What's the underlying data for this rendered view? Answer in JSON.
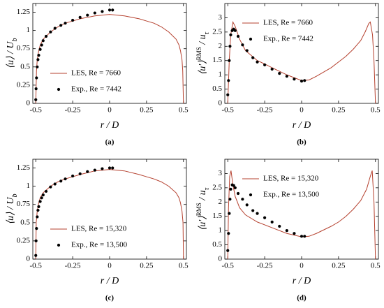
{
  "chart_data": [
    {
      "type": "line",
      "caption": "(a)",
      "xlabel": "r / D",
      "ylabel": [
        {
          "text": "⟨u⟩ / U"
        },
        {
          "sub": "b"
        }
      ],
      "xlim": [
        -0.52,
        0.52
      ],
      "ylim": [
        0,
        1.37
      ],
      "xticks": [
        -0.5,
        -0.25,
        0,
        0.25,
        0.5
      ],
      "yticks": [
        0,
        0.25,
        0.5,
        0.75,
        1,
        1.25
      ],
      "legend": "lower right",
      "series": [
        {
          "name": "LES, Re = 7660",
          "kind": "line",
          "color": "#b5412f",
          "x": [
            -0.5,
            -0.495,
            -0.49,
            -0.48,
            -0.47,
            -0.45,
            -0.4,
            -0.35,
            -0.3,
            -0.25,
            -0.2,
            -0.1,
            0,
            0.1,
            0.2,
            0.25,
            0.3,
            0.35,
            0.4,
            0.45,
            0.47,
            0.48,
            0.49,
            0.495,
            0.5
          ],
          "values": [
            0,
            0.45,
            0.6,
            0.72,
            0.8,
            0.88,
            0.98,
            1.05,
            1.1,
            1.13,
            1.16,
            1.2,
            1.22,
            1.2,
            1.16,
            1.13,
            1.1,
            1.05,
            0.98,
            0.88,
            0.8,
            0.72,
            0.6,
            0.45,
            0
          ]
        },
        {
          "name": "Exp., Re = 7442",
          "kind": "scatter",
          "color": "#000000",
          "x": [
            -0.5,
            -0.498,
            -0.495,
            -0.49,
            -0.485,
            -0.48,
            -0.47,
            -0.46,
            -0.45,
            -0.43,
            -0.4,
            -0.37,
            -0.33,
            -0.3,
            -0.25,
            -0.2,
            -0.15,
            -0.1,
            -0.05,
            0,
            0.02
          ],
          "values": [
            0.05,
            0.2,
            0.35,
            0.5,
            0.6,
            0.66,
            0.74,
            0.8,
            0.86,
            0.92,
            0.98,
            1.03,
            1.07,
            1.1,
            1.14,
            1.18,
            1.21,
            1.24,
            1.26,
            1.28,
            1.28
          ]
        }
      ]
    },
    {
      "type": "line",
      "caption": "(b)",
      "xlabel": "r / D",
      "ylabel": [
        {
          "text": "⟨u′⟩"
        },
        {
          "sup": "RMS"
        },
        {
          "text": " / u"
        },
        {
          "sub": "τ"
        }
      ],
      "xlim": [
        -0.52,
        0.52
      ],
      "ylim": [
        0,
        3.5
      ],
      "xticks": [
        -0.5,
        -0.25,
        0,
        0.25,
        0.5
      ],
      "yticks": [
        0,
        0.5,
        1,
        1.5,
        2,
        2.5,
        3
      ],
      "legend": "upper right",
      "series": [
        {
          "name": "LES, Re = 7660",
          "kind": "line",
          "color": "#b5412f",
          "x": [
            -0.5,
            -0.49,
            -0.48,
            -0.465,
            -0.45,
            -0.42,
            -0.38,
            -0.3,
            -0.25,
            -0.2,
            -0.1,
            0,
            0.05,
            0.1,
            0.2,
            0.25,
            0.3,
            0.35,
            0.4,
            0.43,
            0.455,
            0.465,
            0.48,
            0.49,
            0.5
          ],
          "values": [
            0,
            1.5,
            2.4,
            2.85,
            2.7,
            2.25,
            1.85,
            1.5,
            1.38,
            1.25,
            1.0,
            0.8,
            0.82,
            0.95,
            1.25,
            1.45,
            1.65,
            1.9,
            2.2,
            2.5,
            2.8,
            2.85,
            2.4,
            1.5,
            0
          ]
        },
        {
          "name": "Exp., Re = 7442",
          "kind": "scatter",
          "color": "#000000",
          "x": [
            -0.5,
            -0.495,
            -0.49,
            -0.485,
            -0.48,
            -0.47,
            -0.46,
            -0.45,
            -0.43,
            -0.4,
            -0.37,
            -0.33,
            -0.3,
            -0.25,
            -0.2,
            -0.15,
            -0.1,
            -0.05,
            0,
            0.02
          ],
          "values": [
            0.3,
            0.8,
            1.5,
            2.0,
            2.4,
            2.55,
            2.6,
            2.55,
            2.35,
            2.05,
            1.85,
            1.6,
            1.45,
            1.35,
            1.2,
            1.05,
            0.95,
            0.85,
            0.78,
            0.8
          ]
        }
      ]
    },
    {
      "type": "line",
      "caption": "(c)",
      "xlabel": "r / D",
      "ylabel": [
        {
          "text": "⟨u⟩ / U"
        },
        {
          "sub": "b"
        }
      ],
      "xlim": [
        -0.52,
        0.52
      ],
      "ylim": [
        0,
        1.37
      ],
      "xticks": [
        -0.5,
        -0.25,
        0,
        0.25,
        0.5
      ],
      "yticks": [
        0,
        0.25,
        0.5,
        0.75,
        1,
        1.25
      ],
      "legend": "lower right",
      "series": [
        {
          "name": "LES, Re = 15,320",
          "kind": "line",
          "color": "#b5412f",
          "x": [
            -0.5,
            -0.497,
            -0.49,
            -0.48,
            -0.47,
            -0.45,
            -0.4,
            -0.35,
            -0.3,
            -0.25,
            -0.2,
            -0.1,
            0,
            0.1,
            0.2,
            0.25,
            0.3,
            0.35,
            0.4,
            0.45,
            0.47,
            0.48,
            0.49,
            0.497,
            0.5
          ],
          "values": [
            0,
            0.5,
            0.66,
            0.77,
            0.84,
            0.91,
            1.0,
            1.06,
            1.1,
            1.13,
            1.16,
            1.21,
            1.23,
            1.21,
            1.16,
            1.13,
            1.1,
            1.06,
            1.0,
            0.91,
            0.84,
            0.77,
            0.66,
            0.5,
            0
          ]
        },
        {
          "name": "Exp., Re = 13,500",
          "kind": "scatter",
          "color": "#000000",
          "x": [
            -0.5,
            -0.498,
            -0.495,
            -0.49,
            -0.485,
            -0.48,
            -0.47,
            -0.46,
            -0.45,
            -0.43,
            -0.4,
            -0.37,
            -0.33,
            -0.3,
            -0.25,
            -0.2,
            -0.15,
            -0.1,
            -0.05,
            0,
            0.02
          ],
          "values": [
            0.05,
            0.25,
            0.42,
            0.58,
            0.67,
            0.72,
            0.79,
            0.84,
            0.88,
            0.93,
            0.99,
            1.03,
            1.07,
            1.1,
            1.14,
            1.17,
            1.2,
            1.22,
            1.24,
            1.25,
            1.25
          ]
        }
      ]
    },
    {
      "type": "line",
      "caption": "(d)",
      "xlabel": "r / D",
      "ylabel": [
        {
          "text": "⟨u′⟩"
        },
        {
          "sup": "RMS"
        },
        {
          "text": " / u"
        },
        {
          "sub": "τ"
        }
      ],
      "xlim": [
        -0.52,
        0.52
      ],
      "ylim": [
        0,
        3.5
      ],
      "xticks": [
        -0.5,
        -0.25,
        0,
        0.25,
        0.5
      ],
      "yticks": [
        0,
        0.5,
        1,
        1.5,
        2,
        2.5,
        3
      ],
      "legend": "upper right",
      "series": [
        {
          "name": "LES, Re = 15,320",
          "kind": "line",
          "color": "#b5412f",
          "x": [
            -0.5,
            -0.495,
            -0.487,
            -0.478,
            -0.465,
            -0.45,
            -0.42,
            -0.38,
            -0.3,
            -0.25,
            -0.2,
            -0.1,
            0,
            0.05,
            0.1,
            0.2,
            0.25,
            0.3,
            0.35,
            0.4,
            0.44,
            0.465,
            0.478,
            0.49,
            0.5
          ],
          "values": [
            0,
            1.8,
            2.9,
            3.1,
            2.6,
            2.2,
            1.8,
            1.55,
            1.3,
            1.2,
            1.1,
            0.9,
            0.78,
            0.8,
            0.9,
            1.15,
            1.3,
            1.5,
            1.75,
            2.05,
            2.45,
            2.9,
            3.1,
            2.0,
            0
          ]
        },
        {
          "name": "Exp., Re = 13,500",
          "kind": "scatter",
          "color": "#000000",
          "x": [
            -0.5,
            -0.495,
            -0.49,
            -0.485,
            -0.48,
            -0.47,
            -0.46,
            -0.45,
            -0.43,
            -0.4,
            -0.37,
            -0.33,
            -0.3,
            -0.25,
            -0.2,
            -0.15,
            -0.1,
            -0.05,
            0,
            0.02
          ],
          "values": [
            0.3,
            0.9,
            1.6,
            2.1,
            2.45,
            2.6,
            2.58,
            2.5,
            2.3,
            2.1,
            1.9,
            1.7,
            1.6,
            1.45,
            1.3,
            1.15,
            1.0,
            0.9,
            0.8,
            0.8
          ]
        }
      ]
    }
  ]
}
